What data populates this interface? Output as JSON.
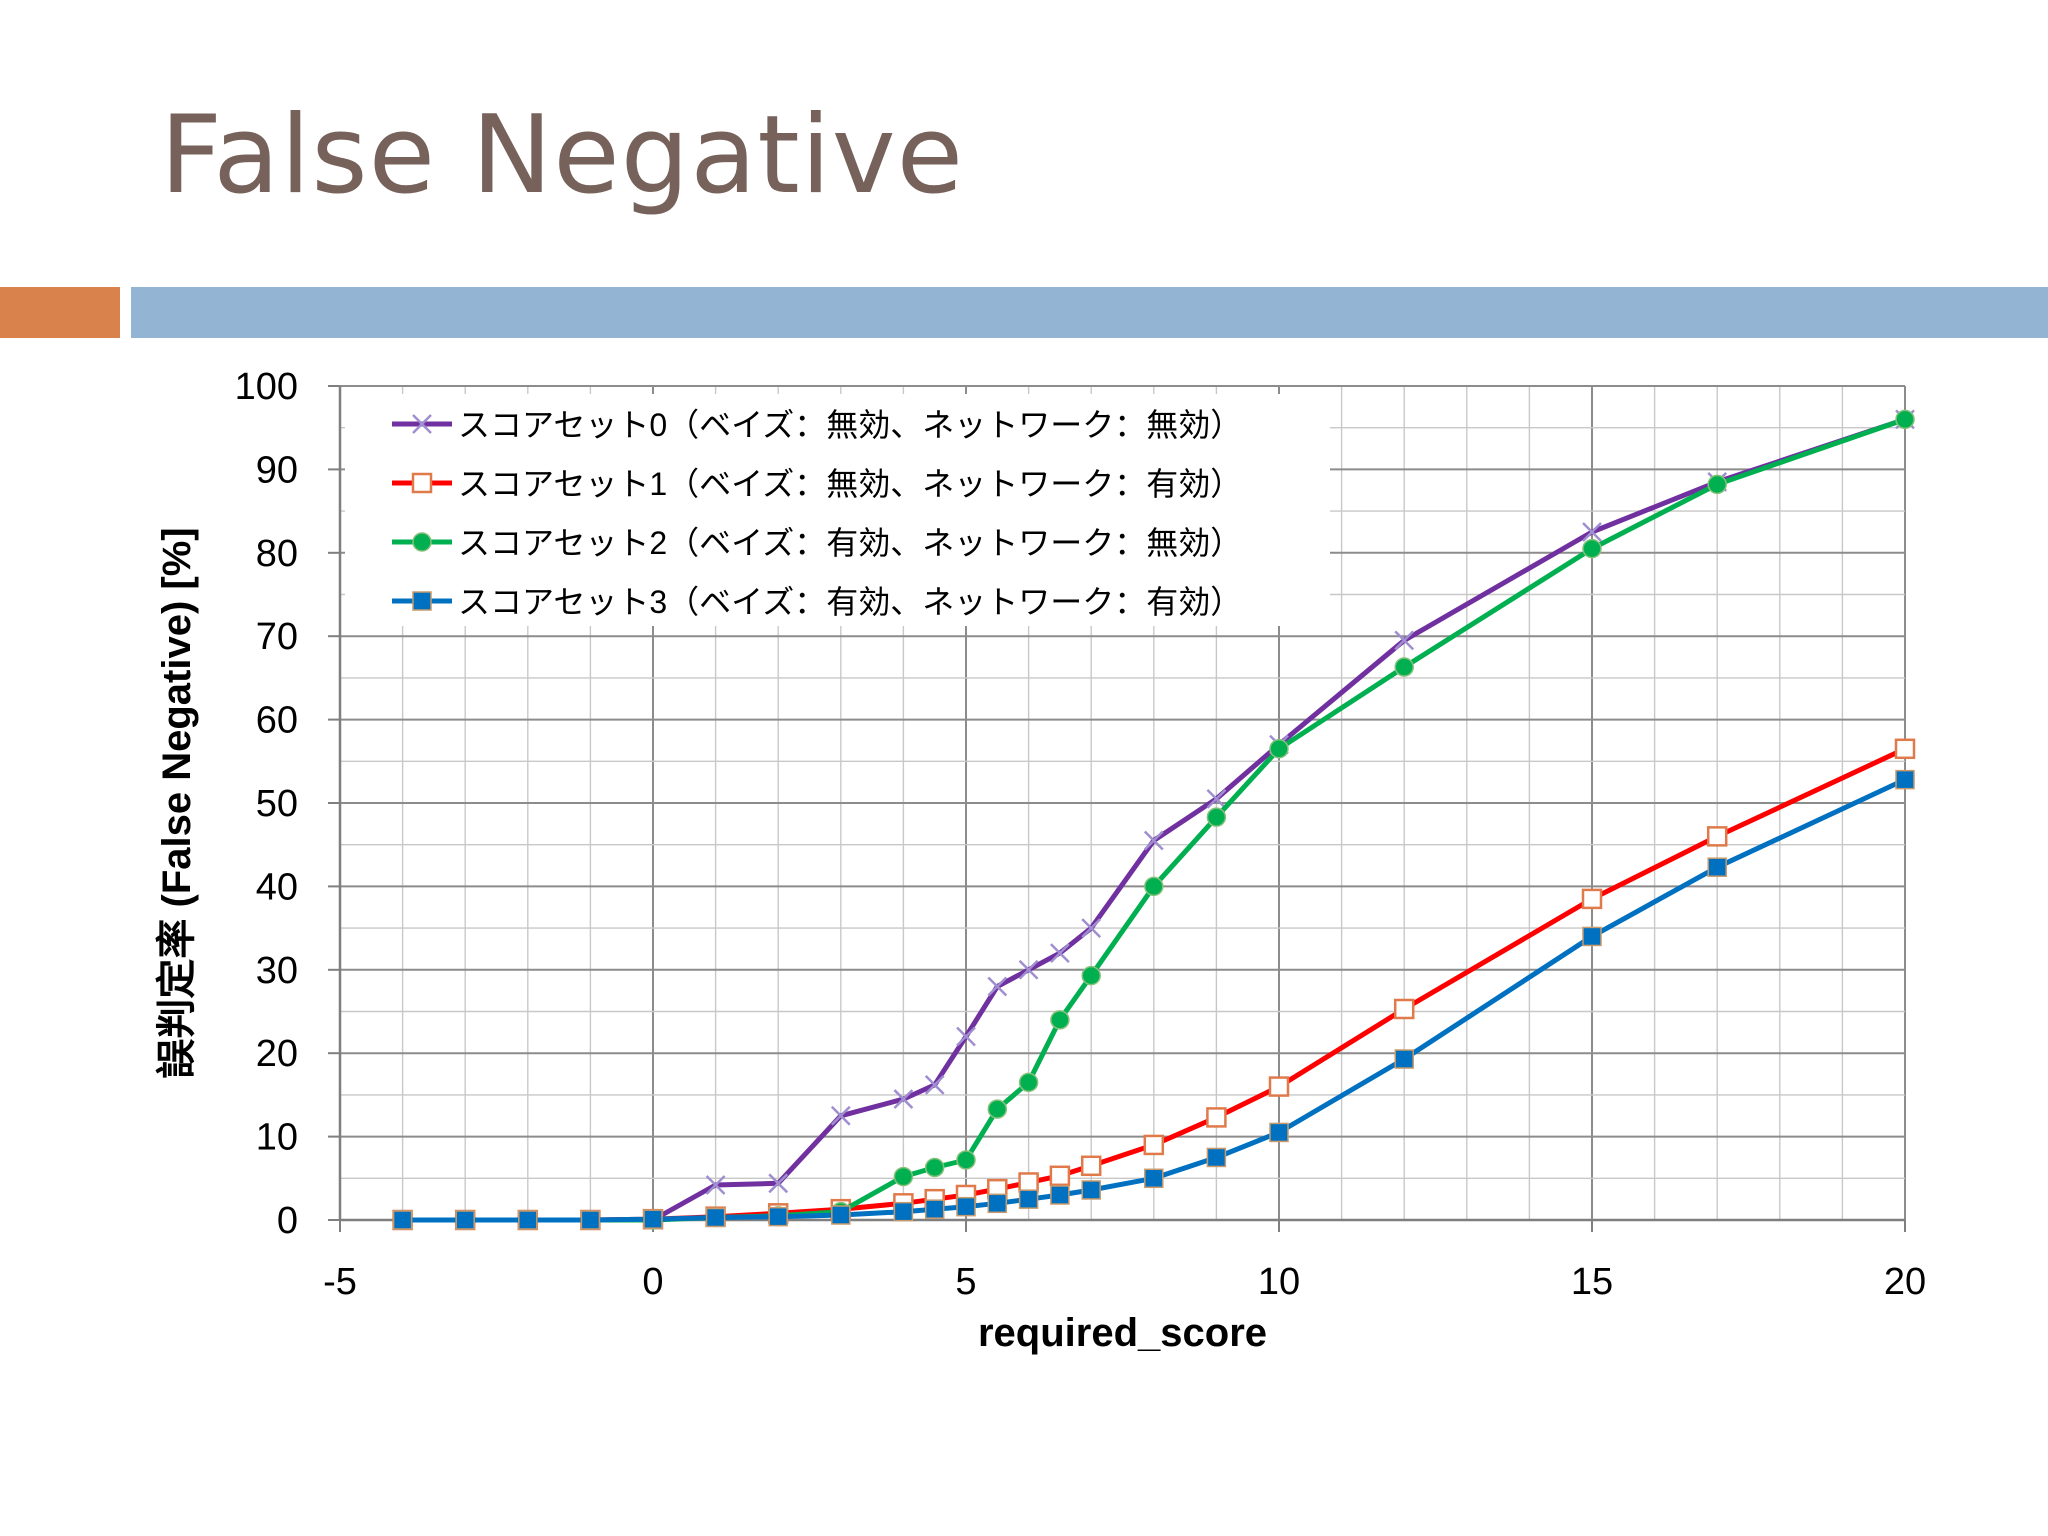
{
  "slide": {
    "title": "False Negative"
  },
  "colors": {
    "title": "#76625a",
    "accent_orange": "#d9824b",
    "accent_blue": "#94b4d4"
  },
  "chart_data": {
    "type": "line",
    "title": "",
    "xlabel": "required_score",
    "ylabel": "誤判定率 (False Negative) [%]",
    "xlim": [
      -5,
      20
    ],
    "ylim": [
      0,
      100
    ],
    "x_ticks": [
      -5,
      0,
      5,
      10,
      15,
      20
    ],
    "y_ticks": [
      0,
      10,
      20,
      30,
      40,
      50,
      60,
      70,
      80,
      90,
      100
    ],
    "grid": true,
    "legend_position": "top-left",
    "series": [
      {
        "name": "スコアセット0（ベイズ：無効、ネットワーク：無効）",
        "color": "#7030a0",
        "marker": "x",
        "x": [
          -4,
          -3,
          -2,
          -1,
          0,
          1,
          2,
          3,
          4,
          4.5,
          5,
          5.5,
          6,
          6.5,
          7,
          8,
          9,
          10,
          12,
          15,
          17,
          20
        ],
        "y": [
          0,
          0,
          0,
          0,
          0,
          4.2,
          4.4,
          12.5,
          14.5,
          16.2,
          22,
          28,
          30,
          32,
          35,
          45.5,
          50.5,
          57,
          69.5,
          82.5,
          88.5,
          96
        ]
      },
      {
        "name": "スコアセット1（ベイズ：無効、ネットワーク：有効）",
        "color": "#ff0000",
        "marker": "square-open",
        "x": [
          -4,
          -3,
          -2,
          -1,
          0,
          1,
          2,
          3,
          4,
          4.5,
          5,
          5.5,
          6,
          6.5,
          7,
          8,
          9,
          10,
          12,
          15,
          17,
          20
        ],
        "y": [
          0,
          0,
          0,
          0,
          0.1,
          0.4,
          0.8,
          1.3,
          2.0,
          2.5,
          3.0,
          3.7,
          4.5,
          5.3,
          6.5,
          9.0,
          12.3,
          16.0,
          25.3,
          38.5,
          46.0,
          56.5
        ]
      },
      {
        "name": "スコアセット2（ベイズ：有効、ネットワーク：無効）",
        "color": "#00b050",
        "marker": "circle",
        "x": [
          -4,
          -3,
          -2,
          -1,
          0,
          1,
          2,
          3,
          4,
          4.5,
          5,
          5.5,
          6,
          6.5,
          7,
          8,
          9,
          10,
          12,
          15,
          17,
          20
        ],
        "y": [
          0,
          0,
          0,
          0,
          0,
          0.3,
          0.5,
          1.0,
          5.2,
          6.3,
          7.2,
          13.3,
          16.5,
          24,
          29.3,
          40,
          48.3,
          56.5,
          66.3,
          80.5,
          88.2,
          96
        ]
      },
      {
        "name": "スコアセット3（ベイズ：有効、ネットワーク：有効）",
        "color": "#0070c0",
        "marker": "square",
        "x": [
          -4,
          -3,
          -2,
          -1,
          0,
          1,
          2,
          3,
          4,
          4.5,
          5,
          5.5,
          6,
          6.5,
          7,
          8,
          9,
          10,
          12,
          15,
          17,
          20
        ],
        "y": [
          0,
          0,
          0,
          0,
          0.1,
          0.3,
          0.4,
          0.6,
          1.0,
          1.3,
          1.6,
          2.0,
          2.5,
          3.0,
          3.6,
          5.0,
          7.5,
          10.5,
          19.3,
          34.0,
          42.3,
          52.8
        ]
      }
    ]
  }
}
